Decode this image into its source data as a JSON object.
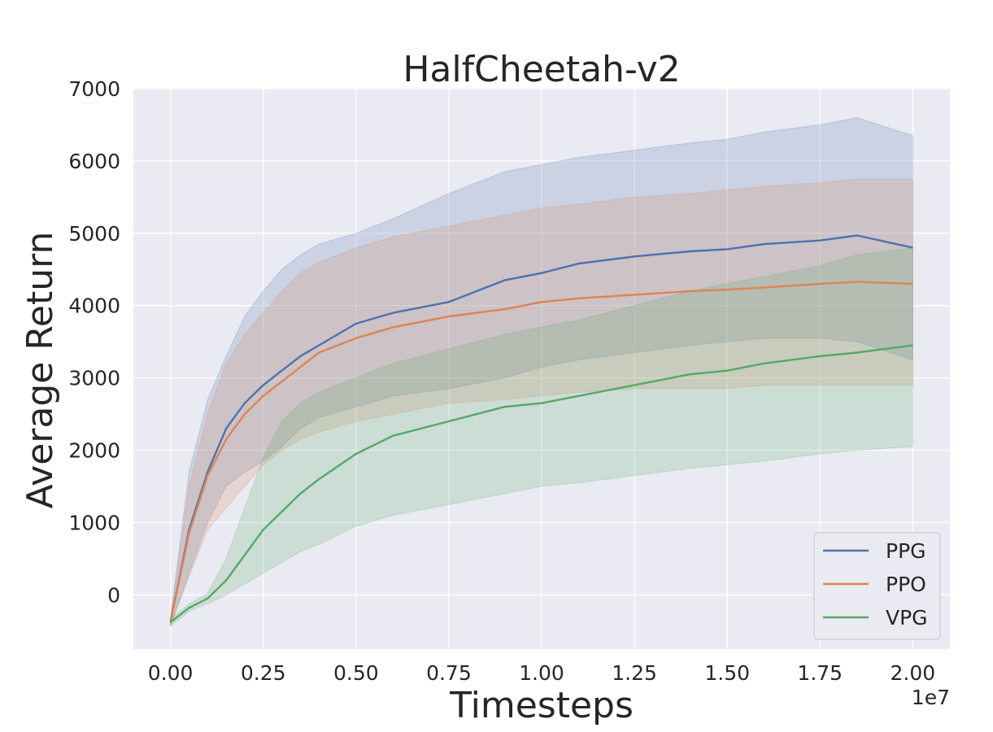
{
  "chart_data": {
    "type": "line",
    "title": "HalfCheetah-v2",
    "xlabel": "Timesteps",
    "ylabel": "Average Return",
    "x_offset_label": "1e7",
    "xlim": [
      -0.1,
      2.1
    ],
    "ylim": [
      -750,
      7000
    ],
    "x_ticks": [
      0.0,
      0.25,
      0.5,
      0.75,
      1.0,
      1.25,
      1.5,
      1.75,
      2.0
    ],
    "x_tick_labels": [
      "0.00",
      "0.25",
      "0.50",
      "0.75",
      "1.00",
      "1.25",
      "1.50",
      "1.75",
      "2.00"
    ],
    "y_ticks": [
      0,
      1000,
      2000,
      3000,
      4000,
      5000,
      6000,
      7000
    ],
    "y_tick_labels": [
      "0",
      "1000",
      "2000",
      "3000",
      "4000",
      "5000",
      "6000",
      "7000"
    ],
    "grid": true,
    "legend_position": "bottom-right",
    "background_color": "#eaeaf2",
    "x": [
      0.0,
      0.05,
      0.1,
      0.15,
      0.2,
      0.25,
      0.3,
      0.35,
      0.4,
      0.5,
      0.6,
      0.75,
      0.9,
      1.0,
      1.1,
      1.25,
      1.4,
      1.5,
      1.6,
      1.75,
      1.85,
      2.0
    ],
    "series": [
      {
        "name": "PPG",
        "color": "#4c72b0",
        "mean": [
          -380,
          900,
          1700,
          2300,
          2650,
          2900,
          3100,
          3300,
          3450,
          3750,
          3900,
          4050,
          4350,
          4450,
          4580,
          4680,
          4750,
          4780,
          4850,
          4900,
          4970,
          4800
        ],
        "upper": [
          -330,
          1700,
          2700,
          3300,
          3850,
          4200,
          4500,
          4700,
          4850,
          5000,
          5200,
          5550,
          5850,
          5950,
          6050,
          6150,
          6250,
          6300,
          6400,
          6500,
          6600,
          6350
        ],
        "lower": [
          -430,
          300,
          1000,
          1500,
          1700,
          1850,
          2050,
          2300,
          2450,
          2600,
          2750,
          2850,
          3000,
          3150,
          3250,
          3350,
          3450,
          3500,
          3550,
          3550,
          3500,
          3250
        ]
      },
      {
        "name": "PPO",
        "color": "#dd8452",
        "mean": [
          -380,
          850,
          1650,
          2150,
          2500,
          2750,
          2950,
          3150,
          3350,
          3550,
          3700,
          3850,
          3950,
          4050,
          4100,
          4150,
          4200,
          4220,
          4250,
          4300,
          4330,
          4300
        ],
        "upper": [
          -330,
          1500,
          2500,
          3200,
          3600,
          3900,
          4200,
          4450,
          4600,
          4800,
          4950,
          5100,
          5250,
          5350,
          5400,
          5500,
          5550,
          5600,
          5650,
          5700,
          5750,
          5750
        ],
        "lower": [
          -430,
          250,
          900,
          1200,
          1500,
          1800,
          2000,
          2150,
          2250,
          2400,
          2500,
          2650,
          2700,
          2750,
          2800,
          2850,
          2850,
          2850,
          2900,
          2900,
          2900,
          2900
        ]
      },
      {
        "name": "VPG",
        "color": "#55a868",
        "mean": [
          -380,
          -180,
          -50,
          200,
          550,
          900,
          1150,
          1400,
          1600,
          1950,
          2200,
          2400,
          2600,
          2650,
          2750,
          2900,
          3050,
          3100,
          3200,
          3300,
          3350,
          3450
        ],
        "upper": [
          -330,
          -130,
          20,
          500,
          1200,
          1900,
          2400,
          2650,
          2800,
          3000,
          3200,
          3400,
          3600,
          3700,
          3800,
          4000,
          4200,
          4300,
          4400,
          4550,
          4700,
          4800
        ],
        "lower": [
          -430,
          -230,
          -120,
          0,
          150,
          300,
          450,
          600,
          700,
          950,
          1100,
          1250,
          1400,
          1500,
          1550,
          1650,
          1750,
          1800,
          1850,
          1950,
          2000,
          2050
        ]
      }
    ]
  }
}
